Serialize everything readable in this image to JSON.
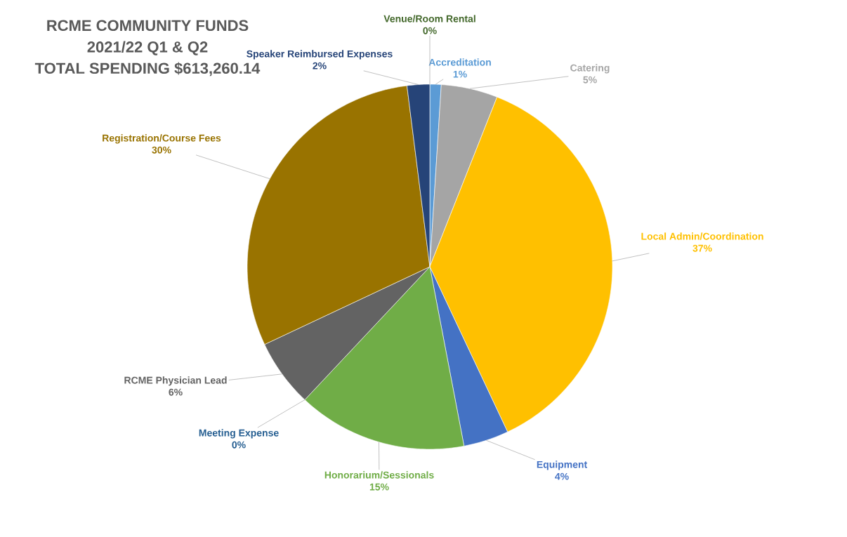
{
  "chart_data": {
    "type": "pie",
    "title": "RCME COMMUNITY FUNDS",
    "subtitle": "2021/22 Q1 & Q2",
    "annotations": [
      "TOTAL SPENDING $613,260.14"
    ],
    "categories": [
      "Accreditation",
      "Catering",
      "Local Admin/Coordination",
      "Equipment",
      "Honorarium/Sessionals",
      "Meeting Expense",
      "RCME Physician Lead",
      "Registration/Course Fees",
      "Speaker Reimbursed Expenses",
      "Venue/Room Rental"
    ],
    "values": [
      1,
      5,
      37,
      4,
      15,
      0,
      6,
      30,
      2,
      0
    ],
    "value_labels": [
      "1%",
      "5%",
      "37%",
      "4%",
      "15%",
      "0%",
      "6%",
      "30%",
      "2%",
      "0%"
    ],
    "colors": [
      "#5b9bd5",
      "#a5a5a5",
      "#ffc000",
      "#4472c4",
      "#70ad47",
      "#255e91",
      "#636363",
      "#997300",
      "#264478",
      "#43682b"
    ]
  }
}
